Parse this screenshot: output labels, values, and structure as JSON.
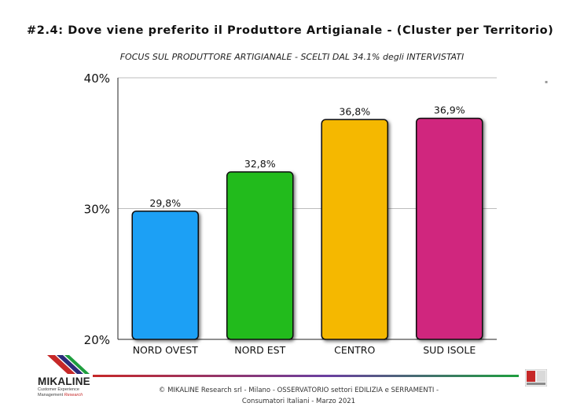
{
  "header": {
    "title": "#2.4: Dove viene preferito il Produttore Artigianale - (Cluster per Territorio)",
    "subtitle": "FOCUS SUL PRODUTTORE ARTIGIANALE - SCELTI DAL 34.1% degli INTERVISTATI"
  },
  "chart_data": {
    "type": "bar",
    "categories": [
      "NORD OVEST",
      "NORD EST",
      "CENTRO",
      "SUD ISOLE"
    ],
    "values": [
      29.8,
      32.8,
      36.8,
      36.9
    ],
    "value_labels": [
      "29,8%",
      "32,8%",
      "36,8%",
      "36,9%"
    ],
    "bar_colors": [
      "#1ea0f5",
      "#22bb1e",
      "#f5b800",
      "#d0287e"
    ],
    "ylim": [
      20,
      40
    ],
    "yticks": [
      20,
      30,
      40
    ],
    "ytick_labels": [
      "20%",
      "30%",
      "40%"
    ],
    "grid": true,
    "legend": "none"
  },
  "footer": {
    "line1": "© MIKALINE Research srl -  Milano - OSSERVATORIO settori EDILIZIA e SERRAMENTI -",
    "line2": "Consumatori Italiani  - Marzo 2021"
  },
  "logo": {
    "wordmark": "MIKALINE",
    "tagline1": "Customer Experience",
    "tagline2": "Management",
    "tagline3": "Research"
  },
  "colors": {
    "grid": "#bdbdbd",
    "axis": "#222222",
    "footer_gradient": [
      "#c62828",
      "#6a3fa0",
      "#1e9e3e"
    ]
  }
}
